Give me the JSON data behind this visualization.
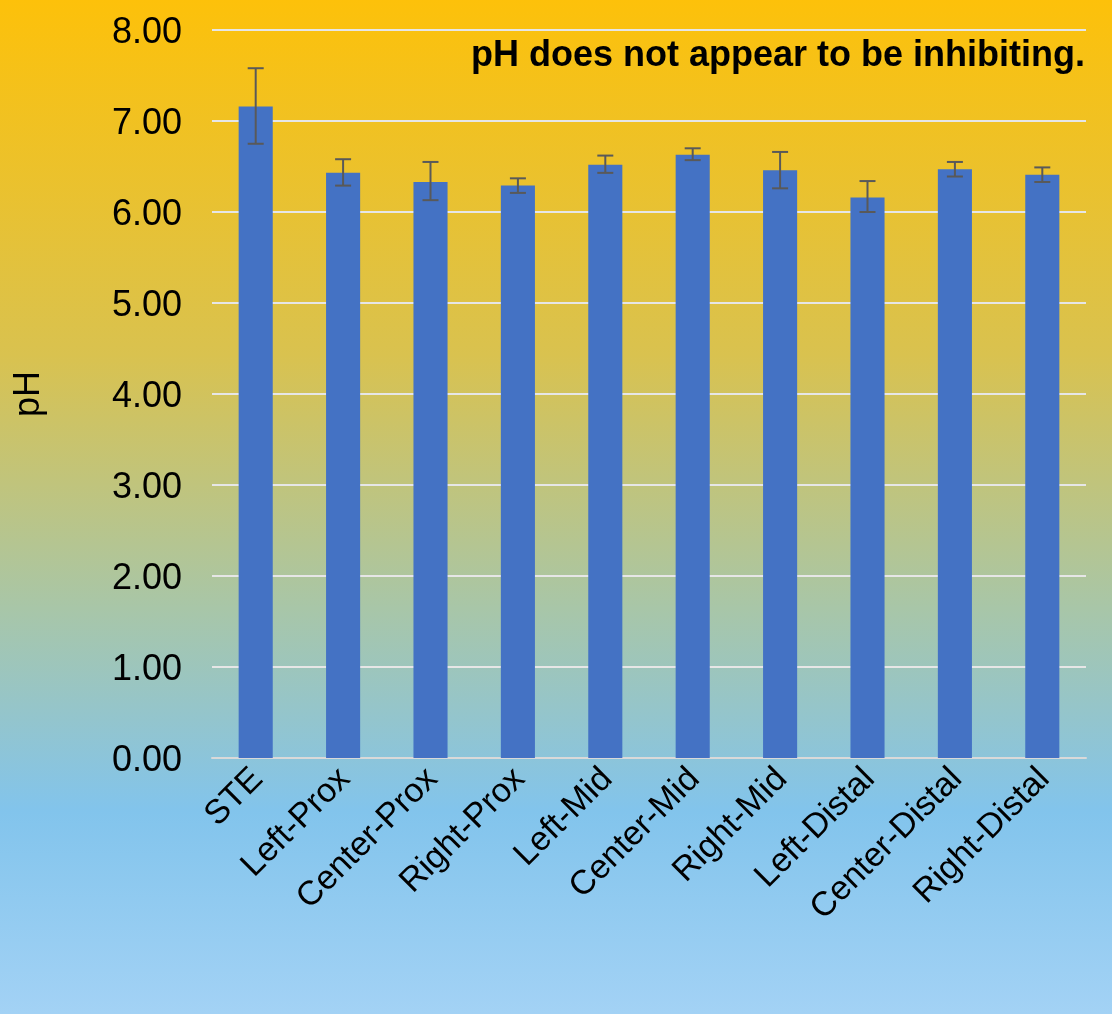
{
  "chart_data": {
    "type": "bar",
    "title": "pH does not appear to be inhibiting.",
    "ylabel": "pH",
    "categories": [
      "STE",
      "Left-Prox",
      "Center-Prox",
      "Right-Prox",
      "Left-Mid",
      "Center-Mid",
      "Right-Mid",
      "Left-Distal",
      "Center-Distal",
      "Right-Distal"
    ],
    "values": [
      7.16,
      6.43,
      6.33,
      6.29,
      6.52,
      6.63,
      6.46,
      6.16,
      6.47,
      6.41
    ],
    "errors": [
      [
        6.75,
        7.58
      ],
      [
        6.29,
        6.58
      ],
      [
        6.13,
        6.55
      ],
      [
        6.21,
        6.37
      ],
      [
        6.43,
        6.62
      ],
      [
        6.57,
        6.7
      ],
      [
        6.26,
        6.66
      ],
      [
        6.0,
        6.34
      ],
      [
        6.39,
        6.55
      ],
      [
        6.33,
        6.49
      ]
    ],
    "color": "#4472c4",
    "ylim": [
      0,
      8
    ],
    "yticks": [
      {
        "value": 0,
        "label": "0.00"
      },
      {
        "value": 1,
        "label": "1.00"
      },
      {
        "value": 2,
        "label": "2.00"
      },
      {
        "value": 3,
        "label": "3.00"
      },
      {
        "value": 4,
        "label": "4.00"
      },
      {
        "value": 5,
        "label": "5.00"
      },
      {
        "value": 6,
        "label": "6.00"
      },
      {
        "value": 7,
        "label": "7.00"
      },
      {
        "value": 8,
        "label": "8.00"
      }
    ],
    "grid": "y"
  }
}
